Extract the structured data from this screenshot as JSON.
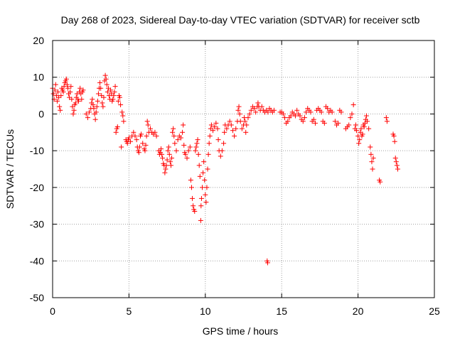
{
  "chart_data": {
    "type": "scatter",
    "title": "Day 268 of 2023, Sidereal Day-to-day VTEC variation (SDTVAR) for receiver sctb",
    "xlabel": "GPS time / hours",
    "ylabel": "SDTVAR / TECUs",
    "xlim": [
      0,
      25
    ],
    "ylim": [
      -50,
      20
    ],
    "x_ticks": [
      0,
      5,
      10,
      15,
      20,
      25
    ],
    "y_ticks": [
      -50,
      -40,
      -30,
      -20,
      -10,
      0,
      10,
      20
    ],
    "x_tick_labels": [
      "0",
      "5",
      "10",
      "15",
      "20",
      "25"
    ],
    "y_tick_labels": [
      "-50",
      "-40",
      "-30",
      "-20",
      "-10",
      "0",
      "10",
      "20"
    ],
    "grid": true,
    "marker": "+",
    "marker_color": "#ff0000",
    "series": [
      {
        "name": "SDTVAR",
        "points": [
          [
            0.0,
            7.0
          ],
          [
            0.05,
            5.5
          ],
          [
            0.1,
            4.0
          ],
          [
            0.15,
            6.5
          ],
          [
            0.2,
            8.0
          ],
          [
            0.25,
            5.0
          ],
          [
            0.3,
            3.5
          ],
          [
            0.35,
            6.0
          ],
          [
            0.4,
            4.5
          ],
          [
            0.45,
            2.0
          ],
          [
            0.5,
            1.0
          ],
          [
            0.55,
            5.0
          ],
          [
            0.6,
            7.0
          ],
          [
            0.65,
            6.5
          ],
          [
            0.7,
            6.0
          ],
          [
            0.75,
            7.5
          ],
          [
            0.8,
            8.5
          ],
          [
            0.85,
            9.0
          ],
          [
            0.9,
            9.5
          ],
          [
            0.95,
            8.0
          ],
          [
            1.0,
            7.0
          ],
          [
            1.05,
            5.5
          ],
          [
            1.1,
            4.5
          ],
          [
            1.15,
            6.0
          ],
          [
            1.2,
            7.5
          ],
          [
            1.25,
            4.0
          ],
          [
            1.3,
            2.0
          ],
          [
            1.35,
            0.0
          ],
          [
            1.4,
            1.0
          ],
          [
            1.45,
            2.5
          ],
          [
            1.5,
            3.0
          ],
          [
            1.55,
            4.5
          ],
          [
            1.6,
            5.5
          ],
          [
            1.65,
            4.0
          ],
          [
            1.7,
            3.5
          ],
          [
            1.75,
            6.0
          ],
          [
            1.8,
            7.0
          ],
          [
            1.85,
            5.5
          ],
          [
            1.9,
            4.0
          ],
          [
            1.95,
            6.0
          ],
          [
            2.0,
            6.5
          ],
          [
            2.2,
            0.0
          ],
          [
            2.3,
            -1.0
          ],
          [
            2.4,
            0.5
          ],
          [
            2.5,
            1.5
          ],
          [
            2.55,
            3.0
          ],
          [
            2.6,
            4.0
          ],
          [
            2.65,
            2.5
          ],
          [
            2.7,
            1.5
          ],
          [
            2.75,
            0.0
          ],
          [
            2.8,
            -1.5
          ],
          [
            2.85,
            0.5
          ],
          [
            2.9,
            2.0
          ],
          [
            2.95,
            3.5
          ],
          [
            3.0,
            5.5
          ],
          [
            3.05,
            7.0
          ],
          [
            3.1,
            8.5
          ],
          [
            3.15,
            7.0
          ],
          [
            3.2,
            5.0
          ],
          [
            3.25,
            3.0
          ],
          [
            3.3,
            2.0
          ],
          [
            3.35,
            4.5
          ],
          [
            3.4,
            9.0
          ],
          [
            3.45,
            10.5
          ],
          [
            3.5,
            9.5
          ],
          [
            3.55,
            8.0
          ],
          [
            3.6,
            6.0
          ],
          [
            3.65,
            7.0
          ],
          [
            3.7,
            5.0
          ],
          [
            3.75,
            4.0
          ],
          [
            3.8,
            6.5
          ],
          [
            3.85,
            5.5
          ],
          [
            3.9,
            3.5
          ],
          [
            3.95,
            4.0
          ],
          [
            4.0,
            5.0
          ],
          [
            4.05,
            6.0
          ],
          [
            4.1,
            7.5
          ],
          [
            4.15,
            -5.0
          ],
          [
            4.2,
            -4.0
          ],
          [
            4.25,
            -3.5
          ],
          [
            4.3,
            3.5
          ],
          [
            4.35,
            5.0
          ],
          [
            4.4,
            4.5
          ],
          [
            4.45,
            2.5
          ],
          [
            4.5,
            -9.0
          ],
          [
            4.55,
            0.5
          ],
          [
            4.6,
            -0.5
          ],
          [
            4.65,
            -2.0
          ],
          [
            4.8,
            -7.0
          ],
          [
            4.85,
            -7.5
          ],
          [
            4.9,
            -8.0
          ],
          [
            4.95,
            -7.0
          ],
          [
            5.0,
            -6.5
          ],
          [
            5.1,
            -7.5
          ],
          [
            5.2,
            -6.0
          ],
          [
            5.3,
            -5.0
          ],
          [
            5.4,
            -6.0
          ],
          [
            5.5,
            -7.0
          ],
          [
            5.55,
            -9.0
          ],
          [
            5.6,
            -10.0
          ],
          [
            5.65,
            -10.5
          ],
          [
            5.7,
            -9.0
          ],
          [
            5.75,
            -6.0
          ],
          [
            5.8,
            -5.5
          ],
          [
            5.9,
            -8.0
          ],
          [
            6.0,
            -9.5
          ],
          [
            6.05,
            -10.0
          ],
          [
            6.1,
            -8.5
          ],
          [
            6.15,
            -6.0
          ],
          [
            6.2,
            -2.0
          ],
          [
            6.25,
            -3.0
          ],
          [
            6.3,
            -5.0
          ],
          [
            6.4,
            -4.0
          ],
          [
            6.5,
            -5.0
          ],
          [
            6.6,
            -5.5
          ],
          [
            6.7,
            -5.0
          ],
          [
            6.8,
            -6.0
          ],
          [
            6.95,
            -10.0
          ],
          [
            7.0,
            -11.0
          ],
          [
            7.05,
            -10.5
          ],
          [
            7.1,
            -9.5
          ],
          [
            7.15,
            -11.0
          ],
          [
            7.2,
            -12.0
          ],
          [
            7.25,
            -13.5
          ],
          [
            7.3,
            -14.0
          ],
          [
            7.35,
            -16.0
          ],
          [
            7.4,
            -15.0
          ],
          [
            7.45,
            -14.0
          ],
          [
            7.5,
            -12.5
          ],
          [
            7.55,
            -10.0
          ],
          [
            7.6,
            -9.0
          ],
          [
            7.65,
            -11.0
          ],
          [
            7.7,
            -13.0
          ],
          [
            7.75,
            -14.0
          ],
          [
            7.8,
            -12.0
          ],
          [
            7.85,
            -5.0
          ],
          [
            7.9,
            -4.0
          ],
          [
            7.95,
            -6.0
          ],
          [
            8.0,
            -8.0
          ],
          [
            8.1,
            -10.0
          ],
          [
            8.2,
            -7.0
          ],
          [
            8.3,
            -6.0
          ],
          [
            8.4,
            -6.5
          ],
          [
            8.5,
            -5.0
          ],
          [
            8.55,
            -3.0
          ],
          [
            8.6,
            -8.5
          ],
          [
            8.65,
            -10.5
          ],
          [
            8.7,
            -11.0
          ],
          [
            8.8,
            -12.0
          ],
          [
            8.9,
            -10.0
          ],
          [
            9.0,
            -9.0
          ],
          [
            9.05,
            -18.0
          ],
          [
            9.1,
            -20.0
          ],
          [
            9.15,
            -23.0
          ],
          [
            9.2,
            -25.0
          ],
          [
            9.25,
            -26.0
          ],
          [
            9.3,
            -26.5
          ],
          [
            9.35,
            -10.0
          ],
          [
            9.4,
            -9.0
          ],
          [
            9.45,
            -8.0
          ],
          [
            9.5,
            -7.0
          ],
          [
            9.55,
            -11.0
          ],
          [
            9.6,
            -14.0
          ],
          [
            9.65,
            -17.0
          ],
          [
            9.7,
            -29.0
          ],
          [
            9.72,
            -25.0
          ],
          [
            9.75,
            -23.0
          ],
          [
            9.8,
            -20.0
          ],
          [
            9.85,
            -16.0
          ],
          [
            9.9,
            -13.0
          ],
          [
            9.95,
            -18.0
          ],
          [
            10.0,
            -22.0
          ],
          [
            10.05,
            -24.0
          ],
          [
            10.1,
            -20.0
          ],
          [
            10.15,
            -15.0
          ],
          [
            10.2,
            -11.0
          ],
          [
            10.25,
            -8.0
          ],
          [
            10.3,
            -6.0
          ],
          [
            10.35,
            -4.0
          ],
          [
            10.4,
            -3.0
          ],
          [
            10.5,
            -4.5
          ],
          [
            10.6,
            -3.5
          ],
          [
            10.7,
            -2.5
          ],
          [
            10.8,
            -4.0
          ],
          [
            10.85,
            -7.0
          ],
          [
            10.9,
            -10.0
          ],
          [
            11.0,
            -11.5
          ],
          [
            11.1,
            -10.0
          ],
          [
            11.2,
            -8.0
          ],
          [
            11.25,
            -5.0
          ],
          [
            11.3,
            -3.0
          ],
          [
            11.4,
            -4.0
          ],
          [
            11.5,
            -3.0
          ],
          [
            11.6,
            -2.0
          ],
          [
            11.7,
            -3.0
          ],
          [
            11.8,
            -4.5
          ],
          [
            11.9,
            -6.0
          ],
          [
            12.0,
            -4.0
          ],
          [
            12.1,
            -2.0
          ],
          [
            12.15,
            1.0
          ],
          [
            12.2,
            2.0
          ],
          [
            12.25,
            0.0
          ],
          [
            12.3,
            -2.0
          ],
          [
            12.4,
            -4.0
          ],
          [
            12.5,
            -3.0
          ],
          [
            12.55,
            -1.0
          ],
          [
            12.6,
            -2.0
          ],
          [
            12.65,
            -5.0
          ],
          [
            12.7,
            -3.0
          ],
          [
            12.8,
            -1.0
          ],
          [
            12.9,
            0.0
          ],
          [
            13.0,
            1.0
          ],
          [
            13.1,
            2.0
          ],
          [
            13.2,
            1.5
          ],
          [
            13.3,
            0.5
          ],
          [
            13.4,
            2.0
          ],
          [
            13.45,
            3.0
          ],
          [
            13.5,
            2.0
          ],
          [
            13.6,
            1.0
          ],
          [
            13.7,
            2.0
          ],
          [
            13.8,
            1.0
          ],
          [
            13.9,
            0.5
          ],
          [
            14.0,
            1.0
          ],
          [
            14.05,
            -40.0
          ],
          [
            14.08,
            -40.5
          ],
          [
            14.1,
            0.5
          ],
          [
            14.2,
            1.5
          ],
          [
            14.3,
            1.0
          ],
          [
            14.4,
            0.5
          ],
          [
            14.5,
            1.0
          ],
          [
            14.9,
            0.5
          ],
          [
            15.0,
            0.5
          ],
          [
            15.1,
            0.0
          ],
          [
            15.2,
            -1.0
          ],
          [
            15.3,
            -2.5
          ],
          [
            15.4,
            -2.0
          ],
          [
            15.5,
            -1.0
          ],
          [
            15.6,
            -0.5
          ],
          [
            15.7,
            0.5
          ],
          [
            15.8,
            0.0
          ],
          [
            15.9,
            -0.5
          ],
          [
            16.0,
            1.0
          ],
          [
            16.1,
            0.0
          ],
          [
            16.2,
            -0.5
          ],
          [
            16.3,
            -1.5
          ],
          [
            16.4,
            -2.0
          ],
          [
            16.5,
            -1.0
          ],
          [
            16.6,
            0.5
          ],
          [
            16.7,
            1.5
          ],
          [
            16.8,
            1.0
          ],
          [
            16.9,
            0.5
          ],
          [
            17.0,
            -2.0
          ],
          [
            17.1,
            -1.5
          ],
          [
            17.2,
            -2.5
          ],
          [
            17.3,
            1.0
          ],
          [
            17.4,
            1.5
          ],
          [
            17.5,
            1.0
          ],
          [
            17.6,
            0.5
          ],
          [
            17.7,
            -2.0
          ],
          [
            17.8,
            -2.5
          ],
          [
            17.9,
            2.0
          ],
          [
            18.0,
            1.5
          ],
          [
            18.1,
            0.5
          ],
          [
            18.2,
            1.0
          ],
          [
            18.3,
            0.5
          ],
          [
            18.5,
            -2.0
          ],
          [
            18.6,
            -3.0
          ],
          [
            18.7,
            -2.5
          ],
          [
            18.8,
            1.0
          ],
          [
            18.9,
            0.5
          ],
          [
            19.2,
            -4.0
          ],
          [
            19.3,
            -3.5
          ],
          [
            19.4,
            -3.0
          ],
          [
            19.5,
            -1.0
          ],
          [
            19.6,
            0.0
          ],
          [
            19.7,
            2.5
          ],
          [
            19.8,
            -4.0
          ],
          [
            19.85,
            -3.0
          ],
          [
            19.9,
            -4.5
          ],
          [
            20.0,
            -6.0
          ],
          [
            20.05,
            -8.0
          ],
          [
            20.1,
            -7.0
          ],
          [
            20.15,
            -5.0
          ],
          [
            20.2,
            -4.0
          ],
          [
            20.25,
            -6.0
          ],
          [
            20.3,
            -5.5
          ],
          [
            20.35,
            -3.0
          ],
          [
            20.4,
            -3.5
          ],
          [
            20.45,
            -2.5
          ],
          [
            20.5,
            -1.5
          ],
          [
            20.55,
            -0.5
          ],
          [
            20.6,
            -2.0
          ],
          [
            20.7,
            -4.0
          ],
          [
            20.8,
            -9.0
          ],
          [
            20.85,
            -11.0
          ],
          [
            20.9,
            -13.0
          ],
          [
            20.95,
            -15.0
          ],
          [
            21.0,
            -12.0
          ],
          [
            21.4,
            -18.0
          ],
          [
            21.45,
            -18.5
          ],
          [
            21.85,
            -1.0
          ],
          [
            21.9,
            -2.0
          ],
          [
            22.3,
            -5.5
          ],
          [
            22.35,
            -6.0
          ],
          [
            22.4,
            -7.5
          ],
          [
            22.45,
            -12.0
          ],
          [
            22.5,
            -13.0
          ],
          [
            22.55,
            -14.0
          ],
          [
            22.6,
            -15.0
          ]
        ]
      }
    ]
  }
}
